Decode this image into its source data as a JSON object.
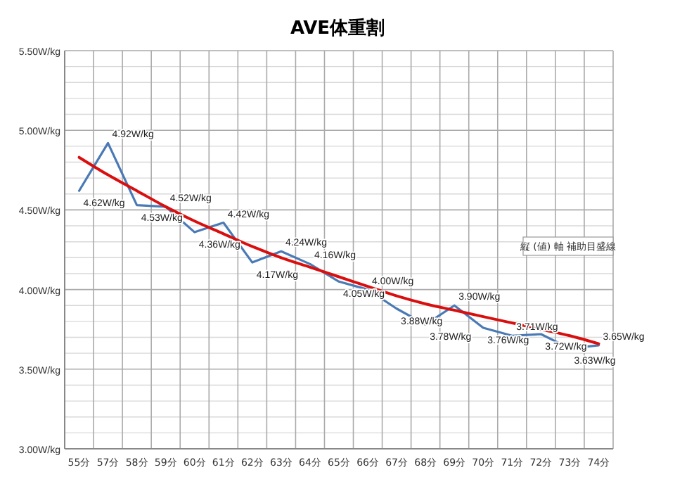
{
  "chart_data": {
    "type": "line",
    "title": "AVE体重割",
    "categories": [
      "55分",
      "57分",
      "58分",
      "59分",
      "60分",
      "61分",
      "62分",
      "63分",
      "64分",
      "65分",
      "66分",
      "67分",
      "68分",
      "69分",
      "70分",
      "71分",
      "72分",
      "73分",
      "74分"
    ],
    "series": [
      {
        "color": "#4a7ab5",
        "values": [
          4.62,
          4.92,
          4.53,
          4.52,
          4.36,
          4.42,
          4.17,
          4.24,
          4.16,
          4.05,
          4.0,
          3.88,
          3.78,
          3.9,
          3.76,
          3.71,
          3.72,
          3.63,
          3.65
        ],
        "value_labels": [
          "4.62W/kg",
          "4.92W/kg",
          "4.53W/kg",
          "4.52W/kg",
          "4.36W/kg",
          "4.42W/kg",
          "4.17W/kg",
          "4.24W/kg",
          "4.16W/kg",
          "4.05W/kg",
          "4.00W/kg",
          "3.88W/kg",
          "3.78W/kg",
          "3.90W/kg",
          "3.76W/kg",
          "3.71W/kg",
          "3.72W/kg",
          "3.63W/kg",
          "3.65W/kg"
        ]
      },
      {
        "type": "line",
        "color": "#d90f0f",
        "x": [
          "55分",
          "57分",
          "58分",
          "59分",
          "60分",
          "61分",
          "62分",
          "63分",
          "64分",
          "65分",
          "66分",
          "67分",
          "68分",
          "69分",
          "70分",
          "71分",
          "72分",
          "73分",
          "74分"
        ],
        "values": [
          4.83,
          4.72,
          4.62,
          4.52,
          4.43,
          4.35,
          4.27,
          4.2,
          4.14,
          4.08,
          4.02,
          3.96,
          3.91,
          3.87,
          3.83,
          3.79,
          3.75,
          3.71,
          3.66
        ]
      }
    ],
    "ylim": [
      3,
      5.5
    ],
    "yticks": [
      {
        "value": 3,
        "label": "3.00W/kg"
      },
      {
        "value": 3.5,
        "label": "3.50W/kg"
      },
      {
        "value": 4,
        "label": "4.00W/kg"
      },
      {
        "value": 4.5,
        "label": "4.50W/kg"
      },
      {
        "value": 5,
        "label": "5.00W/kg"
      },
      {
        "value": 5.5,
        "label": "5.50W/kg"
      }
    ],
    "grid": true,
    "annotations": [
      "縦 (値) 軸 補助目盛線"
    ]
  }
}
